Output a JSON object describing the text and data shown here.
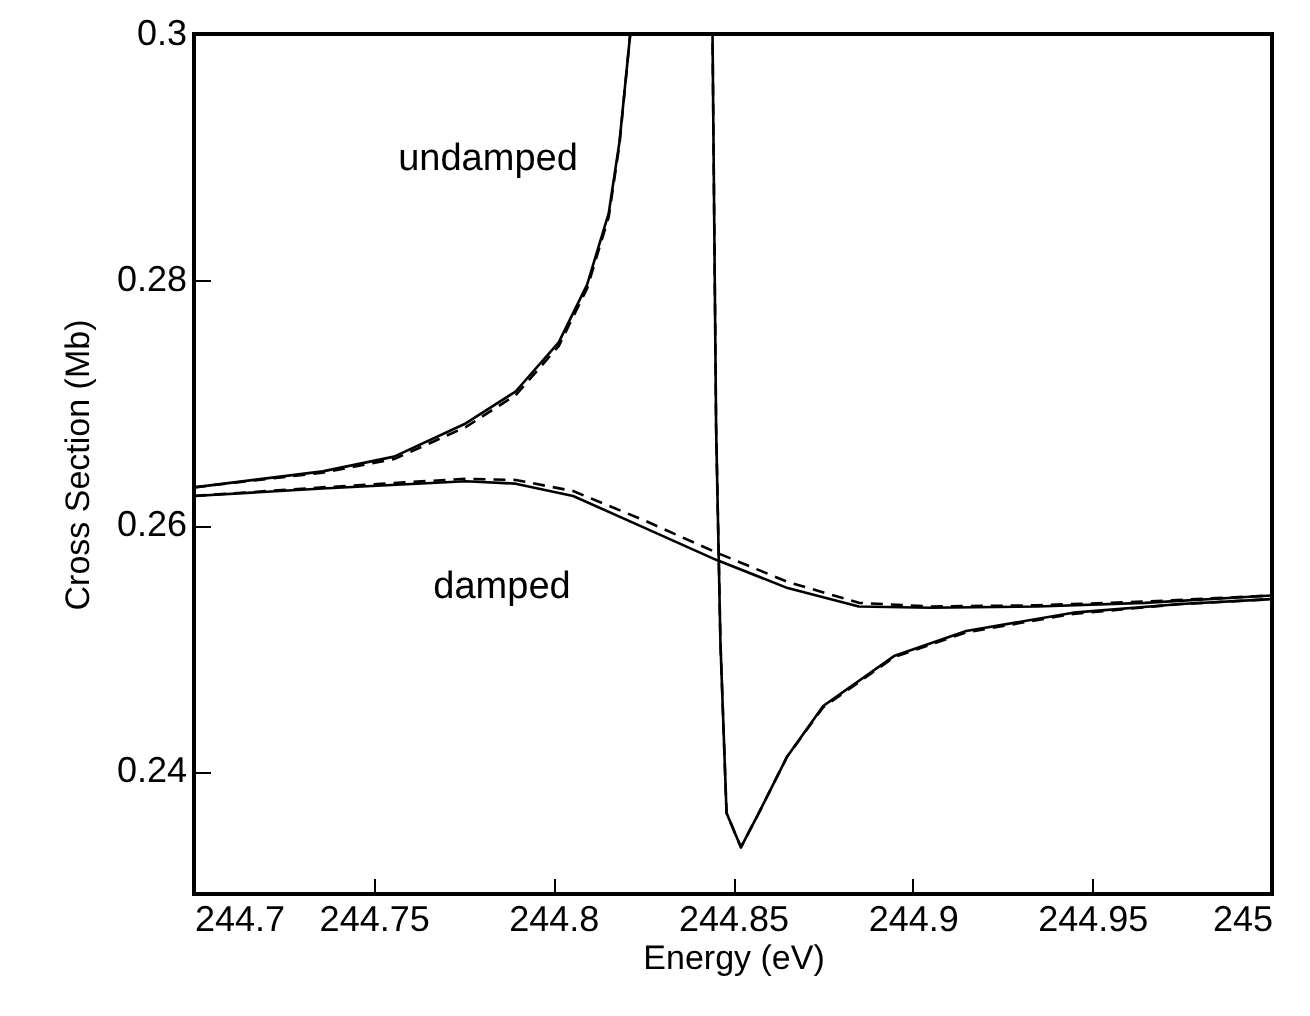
{
  "chart_data": {
    "type": "line",
    "xlabel": "Energy (eV)",
    "ylabel": "Cross Section (Mb)",
    "xlim": [
      244.7,
      245
    ],
    "xticks": [
      244.7,
      244.75,
      244.8,
      244.85,
      244.9,
      244.95,
      245
    ],
    "ylim": [
      0.23,
      0.3
    ],
    "yticks": [
      0.24,
      0.26,
      0.28,
      0.3
    ],
    "grid": false,
    "series": [
      {
        "color": "#000000",
        "line_style": "solid",
        "x": [
          244.7,
          244.7358,
          244.7557,
          244.7756,
          244.7895,
          244.8015,
          244.8094,
          244.8154,
          244.8184,
          244.8214,
          244.8443,
          244.8453,
          244.8465,
          244.8482,
          244.8522,
          244.8572,
          244.8651,
          244.8751,
          244.895,
          244.9149,
          244.9447,
          244.9746,
          245
        ],
        "values": [
          0.2631,
          0.2644,
          0.2656,
          0.2683,
          0.2709,
          0.2749,
          0.2796,
          0.2854,
          0.2912,
          0.3,
          0.3,
          0.268,
          0.2505,
          0.2366,
          0.2338,
          0.2366,
          0.2412,
          0.2453,
          0.2494,
          0.2514,
          0.2529,
          0.2536,
          0.254
        ]
      },
      {
        "color": "#000000",
        "line_style": "dashed",
        "x": [
          244.7,
          244.7358,
          244.7557,
          244.7756,
          244.7895,
          244.8015,
          244.8094,
          244.8154,
          244.8184,
          244.8214,
          244.8443,
          244.8453,
          244.8465,
          244.8482,
          244.8522,
          244.8572,
          244.8651,
          244.8751,
          244.895,
          244.9149,
          244.9447,
          244.9746,
          245
        ],
        "values": [
          0.2631,
          0.2643,
          0.2654,
          0.268,
          0.2706,
          0.2746,
          0.2793,
          0.2851,
          0.291,
          0.3,
          0.3,
          0.268,
          0.2505,
          0.2366,
          0.2338,
          0.2366,
          0.2412,
          0.2452,
          0.2493,
          0.2513,
          0.2528,
          0.2536,
          0.254
        ]
      },
      {
        "color": "#000000",
        "line_style": "solid",
        "x": [
          244.7,
          244.7358,
          244.7756,
          244.7895,
          244.8055,
          244.8254,
          244.8453,
          244.8652,
          244.885,
          244.905,
          244.9348,
          244.9646,
          245
        ],
        "values": [
          0.2624,
          0.263,
          0.2636,
          0.2634,
          0.2624,
          0.2598,
          0.2572,
          0.2549,
          0.2534,
          0.2533,
          0.2534,
          0.2537,
          0.2543
        ]
      },
      {
        "color": "#000000",
        "line_style": "dashed",
        "x": [
          244.7,
          244.7358,
          244.7756,
          244.7895,
          244.8055,
          244.8254,
          244.8453,
          244.8652,
          244.885,
          244.905,
          244.9348,
          244.9646,
          245
        ],
        "values": [
          0.2624,
          0.2631,
          0.2638,
          0.2637,
          0.2628,
          0.2604,
          0.2578,
          0.2554,
          0.2537,
          0.2534,
          0.2535,
          0.2538,
          0.2543
        ]
      }
    ],
    "annotations": [
      "undamped",
      "damped"
    ]
  }
}
